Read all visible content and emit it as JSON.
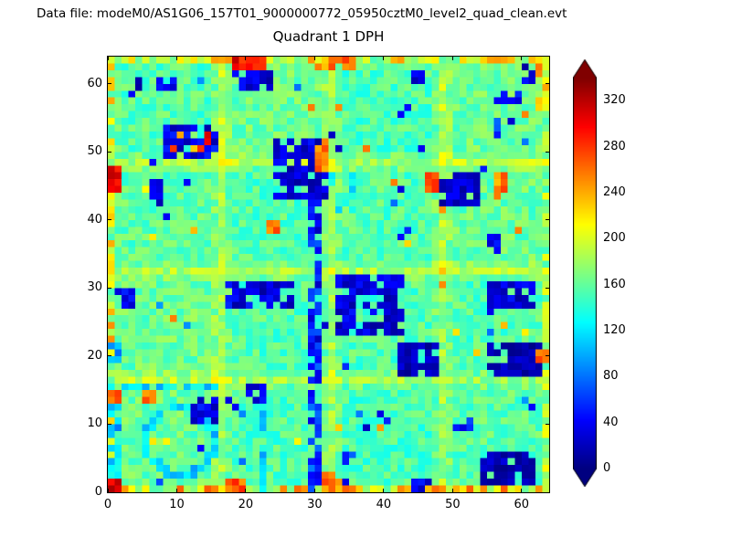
{
  "header": {
    "data_file_label": "Data file: modeM0/AS1G06_157T01_9000000772_05950cztM0_level2_quad_clean.evt"
  },
  "chart_data": {
    "type": "heatmap",
    "title": "Quadrant 1 DPH",
    "xlabel": "",
    "ylabel": "",
    "x_range": [
      0,
      64
    ],
    "y_range": [
      0,
      64
    ],
    "x_ticks": [
      0,
      10,
      20,
      30,
      40,
      50,
      60
    ],
    "y_ticks": [
      0,
      10,
      20,
      30,
      40,
      50,
      60
    ],
    "grid_size": 64,
    "colormap": "jet",
    "vmin": 0,
    "vmax": 340,
    "colorbar_ticks": [
      0,
      40,
      80,
      120,
      160,
      200,
      240,
      280,
      320
    ],
    "colorbar_extend": "both",
    "seed": 11,
    "background_value_mean": 158,
    "background_value_noise": 20,
    "module_seams": [
      16,
      32,
      48
    ],
    "module_tint_amplitude": 7,
    "edges": {
      "bottom": {
        "mean": 212,
        "noise": 58
      },
      "top": {
        "mean": 198,
        "noise": 50
      },
      "left": {
        "mean": 200,
        "noise": 52
      },
      "right": {
        "mean": 183,
        "noise": 36
      }
    },
    "features": [
      {
        "shape": "speckle",
        "count": 45,
        "value": 55,
        "jitter": 40
      },
      {
        "shape": "speckle",
        "count": 22,
        "value": 235,
        "jitter": 25
      },
      {
        "shape": "rect",
        "x": 0,
        "y": 2,
        "w": 1.6,
        "h": 11,
        "value": 110,
        "density": 0.8,
        "jitter": 30
      },
      {
        "shape": "rect",
        "x": 0,
        "y": 15,
        "w": 16,
        "h": 1.3,
        "value": 120,
        "density": 0.8,
        "jitter": 25
      },
      {
        "shape": "rect",
        "x": 22,
        "y": 0,
        "w": 1.3,
        "h": 13,
        "value": 115,
        "density": 0.7,
        "jitter": 25
      },
      {
        "shape": "ring",
        "x": 10.5,
        "y": 7.5,
        "rx": 5.6,
        "t": 1.4,
        "value": 115,
        "density": 0.85,
        "jitter": 25
      },
      {
        "shape": "rect",
        "x": 32.5,
        "y": 41,
        "w": 3,
        "h": 6,
        "value": 125,
        "density": 0.5,
        "jitter": 25
      },
      {
        "shape": "rect",
        "x": 0,
        "y": 19,
        "w": 1.5,
        "h": 2.5,
        "value": 95,
        "density": 0.8,
        "jitter": 20
      },
      {
        "shape": "rect",
        "x": 4,
        "y": 59,
        "w": 2,
        "h": 2,
        "value": 30,
        "density": 0.9,
        "jitter": 20
      },
      {
        "shape": "rect",
        "x": 7,
        "y": 59,
        "w": 2.5,
        "h": 2,
        "value": 30,
        "density": 0.85,
        "jitter": 20
      },
      {
        "shape": "rect",
        "x": 8,
        "y": 49.5,
        "w": 8,
        "h": 4.5,
        "value": 35,
        "density": 0.72,
        "jitter": 25
      },
      {
        "shape": "rect",
        "x": 13,
        "y": 50.5,
        "w": 2,
        "h": 2,
        "value": 300,
        "density": 0.5,
        "jitter": 20
      },
      {
        "shape": "rect",
        "x": 18.5,
        "y": 59.5,
        "w": 5,
        "h": 3,
        "value": 30,
        "density": 0.75,
        "jitter": 20
      },
      {
        "shape": "rect",
        "x": 24,
        "y": 43.5,
        "w": 7.5,
        "h": 8,
        "value": 30,
        "density": 0.82,
        "jitter": 20
      },
      {
        "shape": "rect",
        "x": 29,
        "y": 9,
        "w": 2,
        "h": 35,
        "value": 50,
        "density": 0.72,
        "jitter": 30
      },
      {
        "shape": "rect",
        "x": 17,
        "y": 27.5,
        "w": 10,
        "h": 3.5,
        "value": 35,
        "density": 0.75,
        "jitter": 25
      },
      {
        "shape": "rect",
        "x": 33.5,
        "y": 23.5,
        "w": 9,
        "h": 8,
        "value": 30,
        "density": 0.8,
        "jitter": 20
      },
      {
        "shape": "rect",
        "x": 36.5,
        "y": 25.5,
        "w": 3,
        "h": 3,
        "value": 150,
        "density": 0.7,
        "jitter": 20
      },
      {
        "shape": "rect",
        "x": 42.5,
        "y": 17.5,
        "w": 5.5,
        "h": 4.5,
        "value": 18,
        "density": 0.88,
        "jitter": 15
      },
      {
        "shape": "rect",
        "x": 55,
        "y": 17,
        "w": 7.5,
        "h": 5,
        "value": 18,
        "density": 0.85,
        "jitter": 15
      },
      {
        "shape": "rect",
        "x": 48,
        "y": 42.5,
        "w": 5.5,
        "h": 4,
        "value": 25,
        "density": 0.85,
        "jitter": 18
      },
      {
        "shape": "rect",
        "x": 55,
        "y": 27,
        "w": 6.5,
        "h": 4,
        "value": 30,
        "density": 0.78,
        "jitter": 20
      },
      {
        "shape": "rect",
        "x": 54,
        "y": 1.5,
        "w": 7.5,
        "h": 4,
        "value": 18,
        "density": 0.88,
        "jitter": 15
      },
      {
        "shape": "rect",
        "x": 29.5,
        "y": 0,
        "w": 1.8,
        "h": 9,
        "value": 55,
        "density": 0.72,
        "jitter": 30
      },
      {
        "shape": "rect",
        "x": 12,
        "y": 10,
        "w": 4,
        "h": 3.5,
        "value": 35,
        "density": 0.85,
        "jitter": 20
      },
      {
        "shape": "rect",
        "x": 20,
        "y": 13,
        "w": 3,
        "h": 2.5,
        "value": 40,
        "density": 0.8,
        "jitter": 20
      },
      {
        "shape": "rect",
        "x": 44.5,
        "y": 0,
        "w": 2.5,
        "h": 2,
        "value": 40,
        "density": 0.8,
        "jitter": 20
      },
      {
        "shape": "rect",
        "x": 60,
        "y": 60.5,
        "w": 2,
        "h": 2,
        "value": 30,
        "density": 0.9,
        "jitter": 20
      },
      {
        "shape": "rect",
        "x": 44.5,
        "y": 60.5,
        "w": 1.5,
        "h": 1.5,
        "value": 30,
        "density": 1,
        "jitter": 15
      },
      {
        "shape": "rect",
        "x": 56,
        "y": 52,
        "w": 1.2,
        "h": 6,
        "value": 60,
        "density": 0.7,
        "jitter": 25
      },
      {
        "shape": "rect",
        "x": 2.5,
        "y": 27.5,
        "w": 1.5,
        "h": 2,
        "value": 40,
        "density": 1,
        "jitter": 15
      },
      {
        "shape": "rect",
        "x": 34,
        "y": 3,
        "w": 1.5,
        "h": 3,
        "value": 60,
        "density": 0.7,
        "jitter": 25
      },
      {
        "shape": "rect",
        "x": 50,
        "y": 9,
        "w": 2.5,
        "h": 2,
        "value": 50,
        "density": 0.8,
        "jitter": 20
      },
      {
        "shape": "rect",
        "x": 57.5,
        "y": 57.5,
        "w": 2,
        "h": 1.5,
        "value": 40,
        "density": 0.8,
        "jitter": 20
      },
      {
        "shape": "rect",
        "x": 55,
        "y": 35.5,
        "w": 1.5,
        "h": 2,
        "value": 40,
        "density": 0.9,
        "jitter": 15
      },
      {
        "shape": "rect",
        "x": 6,
        "y": 43.5,
        "w": 2,
        "h": 2,
        "value": 40,
        "density": 0.9,
        "jitter": 15
      },
      {
        "shape": "rect",
        "x": 0,
        "y": 44.5,
        "w": 2,
        "h": 3,
        "value": 305,
        "density": 1,
        "jitter": 20
      },
      {
        "shape": "rect",
        "x": 30.5,
        "y": 47,
        "w": 1.5,
        "h": 4.5,
        "value": 260,
        "density": 0.8,
        "jitter": 25
      },
      {
        "shape": "rect",
        "x": 18.5,
        "y": 62.5,
        "w": 4,
        "h": 1.5,
        "value": 300,
        "density": 0.9,
        "jitter": 25
      },
      {
        "shape": "rect",
        "x": 30,
        "y": 62,
        "w": 6,
        "h": 2,
        "value": 255,
        "density": 0.8,
        "jitter": 30
      },
      {
        "shape": "rect",
        "x": 0,
        "y": 0,
        "w": 2,
        "h": 1.6,
        "value": 310,
        "density": 1,
        "jitter": 20
      },
      {
        "shape": "rect",
        "x": 17,
        "y": 0,
        "w": 3,
        "h": 1.6,
        "value": 265,
        "density": 0.9,
        "jitter": 25
      },
      {
        "shape": "rect",
        "x": 31,
        "y": 0,
        "w": 2.5,
        "h": 2.5,
        "value": 260,
        "density": 0.75,
        "jitter": 30
      },
      {
        "shape": "rect",
        "x": 46.5,
        "y": 44,
        "w": 1.5,
        "h": 2.5,
        "value": 270,
        "density": 1,
        "jitter": 25
      },
      {
        "shape": "rect",
        "x": 56.5,
        "y": 43,
        "w": 1.5,
        "h": 3.5,
        "value": 255,
        "density": 0.8,
        "jitter": 25
      },
      {
        "shape": "rect",
        "x": 9,
        "y": 50,
        "w": 7,
        "h": 3.5,
        "value": 255,
        "density": 0.22,
        "jitter": 30
      },
      {
        "shape": "rect",
        "x": 5,
        "y": 13,
        "w": 2,
        "h": 2,
        "value": 265,
        "density": 0.8,
        "jitter": 25
      },
      {
        "shape": "rect",
        "x": 0,
        "y": 13.5,
        "w": 1.5,
        "h": 1.5,
        "value": 270,
        "density": 1,
        "jitter": 20
      },
      {
        "shape": "rect",
        "x": 62.5,
        "y": 56,
        "w": 1.5,
        "h": 7,
        "value": 230,
        "density": 0.6,
        "jitter": 30
      },
      {
        "shape": "rect",
        "x": 62.5,
        "y": 19.5,
        "w": 1.5,
        "h": 1.5,
        "value": 260,
        "density": 1,
        "jitter": 20
      },
      {
        "shape": "rect",
        "x": 23.5,
        "y": 38,
        "w": 1.5,
        "h": 1.5,
        "value": 260,
        "density": 1,
        "jitter": 20
      }
    ]
  }
}
